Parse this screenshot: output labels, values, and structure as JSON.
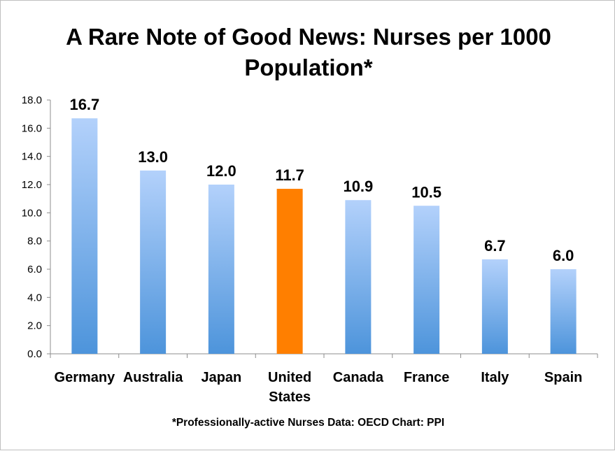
{
  "chart_data": {
    "type": "bar",
    "title": "A Rare Note of Good News: Nurses per 1000 Population*",
    "categories": [
      "Germany",
      "Australia",
      "Japan",
      "United States",
      "Canada",
      "France",
      "Italy",
      "Spain"
    ],
    "category_lines": [
      [
        "Germany"
      ],
      [
        "Australia"
      ],
      [
        "Japan"
      ],
      [
        "United",
        "States"
      ],
      [
        "Canada"
      ],
      [
        "France"
      ],
      [
        "Italy"
      ],
      [
        "Spain"
      ]
    ],
    "values": [
      16.7,
      13.0,
      12.0,
      11.7,
      10.9,
      10.5,
      6.7,
      6.0
    ],
    "data_labels": [
      "16.7",
      "13.0",
      "12.0",
      "11.7",
      "10.9",
      "10.5",
      "6.7",
      "6.0"
    ],
    "highlight_category": "United States",
    "colors": {
      "bar_top": "#b3d1fb",
      "bar_bottom": "#4d94db",
      "highlight": "#ff7f00",
      "axis": "#8c8c8c"
    },
    "ylim": [
      0,
      18
    ],
    "y_ticks": [
      "0.0",
      "2.0",
      "4.0",
      "6.0",
      "8.0",
      "10.0",
      "12.0",
      "14.0",
      "16.0",
      "18.0"
    ],
    "grid": false,
    "legend": "none",
    "xlabel": "",
    "ylabel": "",
    "footnote": "*Professionally-active Nurses  Data: OECD Chart: PPI"
  }
}
